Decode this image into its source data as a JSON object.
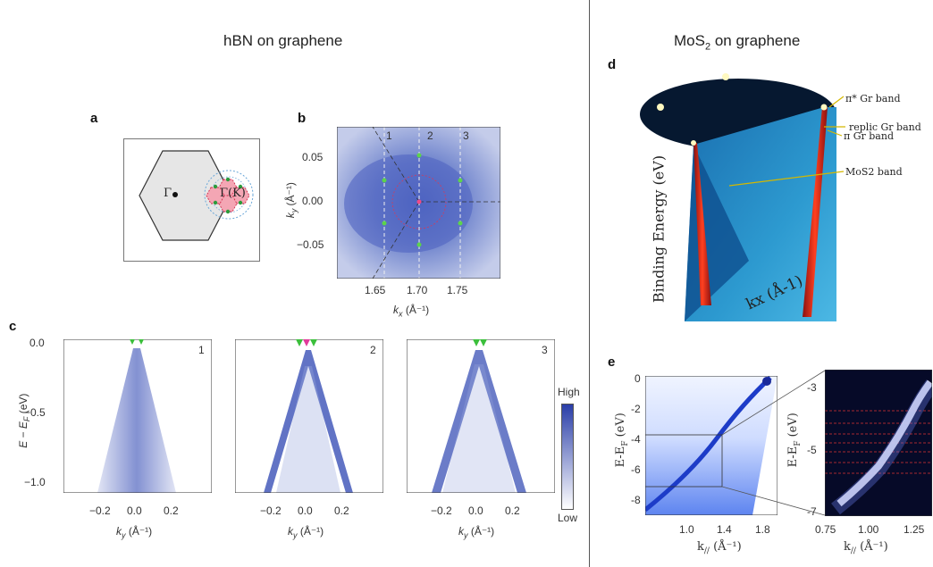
{
  "left": {
    "title": "hBN on graphene",
    "panel_a": {
      "letter": "a",
      "gamma": "Γ",
      "k_point": "Γ(K)"
    },
    "panel_b": {
      "letter": "b",
      "cuts": [
        "1",
        "2",
        "3"
      ],
      "xticks": [
        "1.65",
        "1.70",
        "1.75"
      ],
      "yticks": [
        "0.05",
        "0.00",
        "−0.05"
      ],
      "xlabel": "k",
      "xlabel_sub": "x",
      "xlabel_unit": " (Å⁻¹)",
      "ylabel": "k",
      "ylabel_sub": "y",
      "ylabel_unit": " (Å⁻¹)"
    },
    "panel_c": {
      "letter": "c",
      "subpanels": [
        "1",
        "2",
        "3"
      ],
      "yticks": [
        "0.0",
        "−0.5",
        "−1.0"
      ],
      "xticks": [
        "−0.2",
        "0.0",
        "0.2"
      ],
      "ylabel": "E − E",
      "ylabel_sub": "F",
      "ylabel_unit": " (eV)",
      "xlabel": "k",
      "xlabel_sub": "y",
      "xlabel_unit": " (Å⁻¹)",
      "colorbar_high": "High",
      "colorbar_low": "Low"
    }
  },
  "right": {
    "title": "MoS",
    "title_sub": "2",
    "title_rest": " on graphene",
    "panel_d": {
      "letter": "d",
      "annotations": [
        "π* Gr  band",
        "replic Gr band",
        "π Gr  band",
        "MoS2 band"
      ],
      "ylabel": "Binding Energy (eV)",
      "xlabel": "kx (Å-1)"
    },
    "panel_e": {
      "letter": "e",
      "left": {
        "yticks": [
          "0",
          "-2",
          "-4",
          "-6",
          "-8"
        ],
        "xticks": [
          "1.0",
          "1.4",
          "1.8"
        ],
        "ylabel": "E-E",
        "ylabel_sub": "F",
        "ylabel_unit": " (eV)",
        "xlabel": "k",
        "xlabel_sub": "//",
        "xlabel_unit": " (Å⁻¹)"
      },
      "right": {
        "yticks": [
          "-3",
          "-5",
          "-7"
        ],
        "xticks": [
          "0.75",
          "1.00",
          "1.25"
        ],
        "ylabel": "E-E",
        "ylabel_sub": "F",
        "ylabel_unit": " (eV)",
        "xlabel": "k",
        "xlabel_sub": "//",
        "xlabel_unit": " (Å⁻¹)"
      }
    }
  }
}
